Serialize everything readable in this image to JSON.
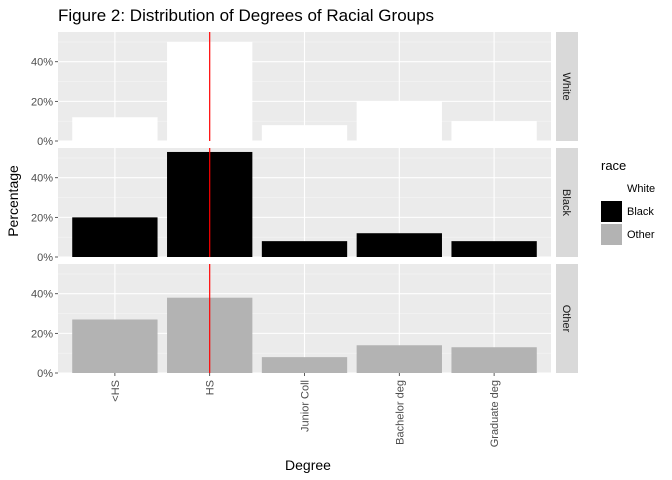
{
  "chart_data": {
    "type": "bar",
    "title": "Figure 2: Distribution of Degrees of Racial Groups",
    "xlabel": "Degree",
    "ylabel": "Percentage",
    "categories": [
      "<HS",
      "HS",
      "Junior Coll",
      "Bachelor deg",
      "Graduate deg"
    ],
    "ylim": [
      0,
      0.55
    ],
    "yticks": [
      0,
      0.2,
      0.4
    ],
    "ytick_labels": [
      "0%",
      "20%",
      "40%"
    ],
    "facets": "rows",
    "reference_line": {
      "x": "HS",
      "color": "#ff0000"
    },
    "grid": true,
    "series": [
      {
        "name": "White",
        "color": "#ffffff",
        "values": [
          0.12,
          0.5,
          0.08,
          0.2,
          0.1
        ]
      },
      {
        "name": "Black",
        "color": "#000000",
        "values": [
          0.2,
          0.53,
          0.08,
          0.12,
          0.08
        ]
      },
      {
        "name": "Other",
        "color": "#b3b3b3",
        "values": [
          0.27,
          0.38,
          0.08,
          0.14,
          0.13
        ]
      }
    ],
    "legend": {
      "title": "race",
      "position": "right"
    }
  }
}
